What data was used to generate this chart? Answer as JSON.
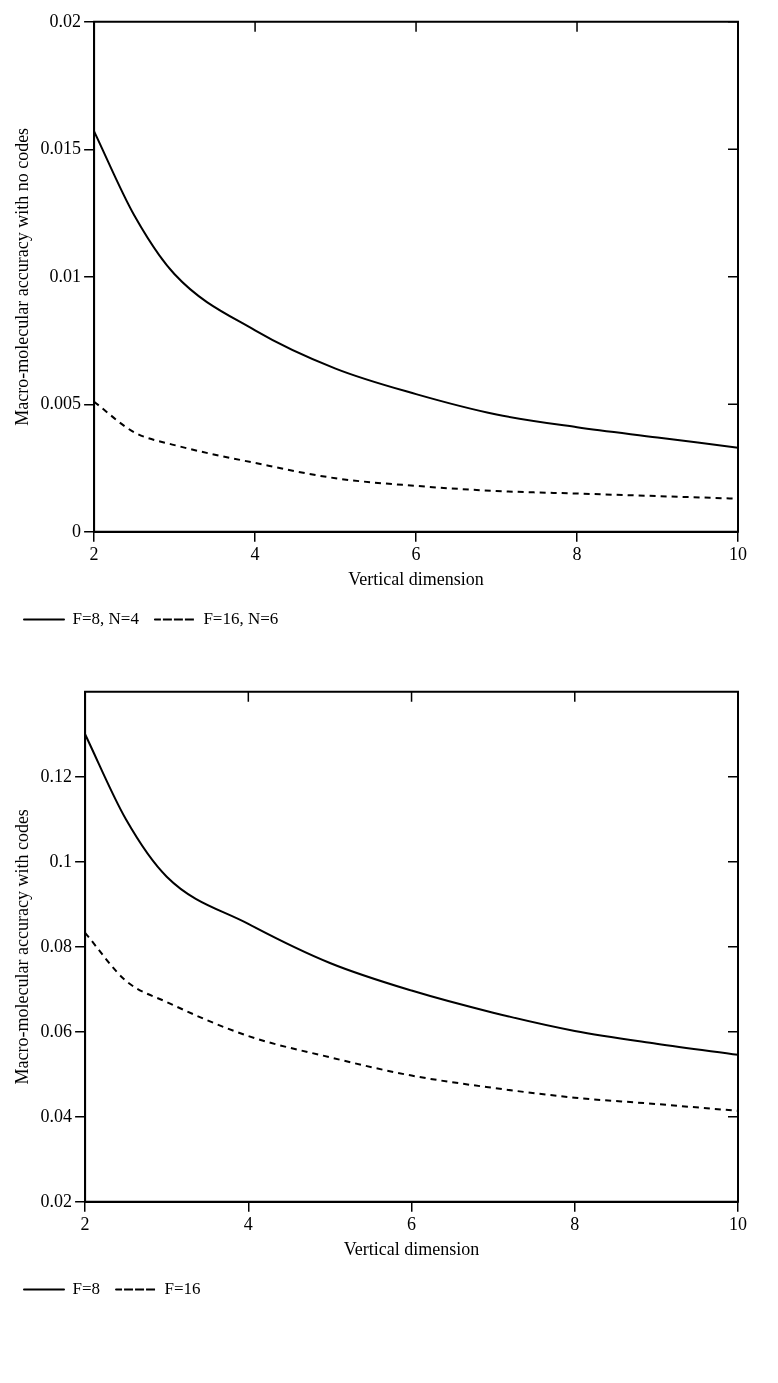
{
  "chart_data": [
    {
      "type": "line",
      "xlabel": "Vertical dimension",
      "ylabel": "Macro-molecular accuracy with no codes",
      "x": [
        2,
        2.5,
        3,
        4,
        5,
        6,
        7,
        8,
        9,
        10
      ],
      "series": [
        {
          "name": "F=8, N=4",
          "color": "#000000",
          "line_style": "solid",
          "values": [
            0.0157,
            0.0124,
            0.0101,
            0.0079,
            0.0064,
            0.0054,
            0.0046,
            0.0041,
            0.0037,
            0.0033
          ]
        },
        {
          "name": "F=16, N=6",
          "color": "#000000",
          "line_style": "dashed",
          "values": [
            0.0051,
            0.0039,
            0.0034,
            0.0027,
            0.0021,
            0.0018,
            0.0016,
            0.0015,
            0.0014,
            0.0013
          ]
        }
      ],
      "xlim": [
        2,
        10
      ],
      "ylim": [
        0,
        0.02
      ],
      "xticks": [
        2,
        4,
        6,
        8,
        10
      ],
      "yticks": [
        0,
        0.005,
        0.01,
        0.015,
        0.02
      ],
      "grid": false,
      "legend": "bottom",
      "marker": "none"
    },
    {
      "type": "line",
      "xlabel": "Vertical dimension",
      "ylabel": "Macro-molecular accuracy with codes",
      "x": [
        2,
        2.5,
        3,
        4,
        5,
        6,
        7,
        8,
        9,
        10
      ],
      "series": [
        {
          "name": "F=8",
          "color": "#000000",
          "line_style": "solid",
          "values": [
            0.13,
            0.11,
            0.0965,
            0.0854,
            0.0762,
            0.0697,
            0.0645,
            0.0602,
            0.0572,
            0.0546
          ]
        },
        {
          "name": "F=16",
          "color": "#000000",
          "line_style": "dashed",
          "values": [
            0.0833,
            0.072,
            0.067,
            0.059,
            0.054,
            0.0497,
            0.0468,
            0.0445,
            0.043,
            0.0414
          ]
        }
      ],
      "xlim": [
        2,
        10
      ],
      "ylim": [
        0.02,
        0.14
      ],
      "xticks": [
        2,
        4,
        6,
        8,
        10
      ],
      "yticks": [
        0.02,
        0.04,
        0.06,
        0.08,
        0.1,
        0.12
      ],
      "grid": false,
      "legend": "bottom",
      "marker": "none"
    }
  ]
}
